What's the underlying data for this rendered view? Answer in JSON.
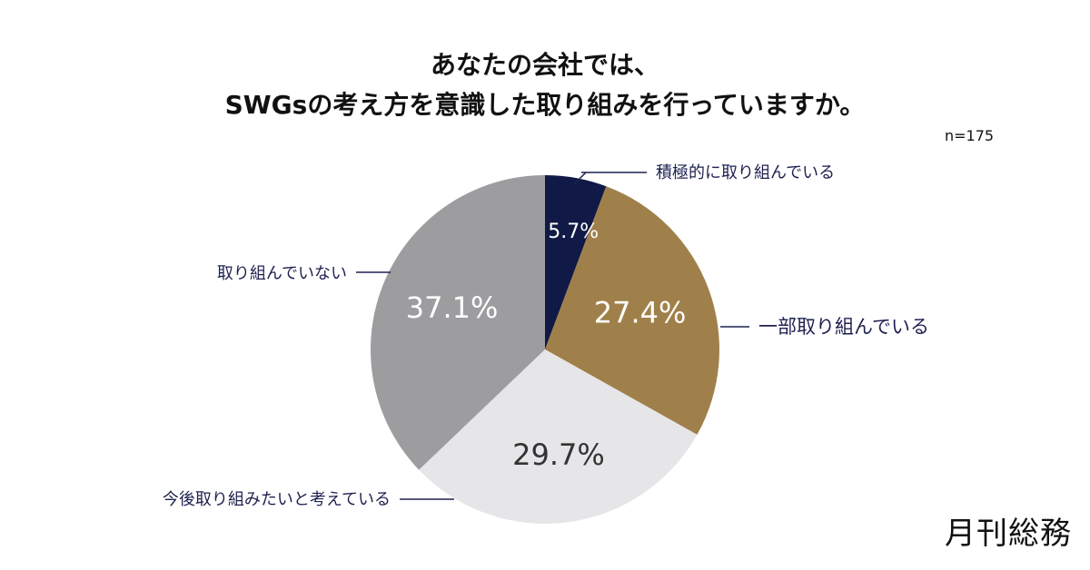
{
  "title_line1": "あなたの会社では、",
  "title_line2": "SWGsの考え方を意識した取り組みを行っていますか。",
  "sample_size": "n=175",
  "logo_text": "月刊総務",
  "chart_data": {
    "type": "pie",
    "title": "あなたの会社では、 SWGsの考え方を意識した取り組みを行っていますか。",
    "slices": [
      {
        "label": "積極的に取り組んでいる",
        "value": 5.7,
        "value_label": "5.7%",
        "color": "#111a46",
        "text_color": "#ffffff"
      },
      {
        "label": "一部取り組んでいる",
        "value": 27.4,
        "value_label": "27.4%",
        "color": "#a0804a",
        "text_color": "#ffffff"
      },
      {
        "label": "今後取り組みたいと考えている",
        "value": 29.7,
        "value_label": "29.7%",
        "color": "#e6e5e8",
        "text_color": "#333333"
      },
      {
        "label": "取り組んでいない",
        "value": 37.1,
        "value_label": "37.1%",
        "color": "#9d9c9f",
        "text_color": "#ffffff"
      }
    ],
    "start_angle": "12 o'clock",
    "direction": "clockwise",
    "label_color": "#1e2150"
  }
}
